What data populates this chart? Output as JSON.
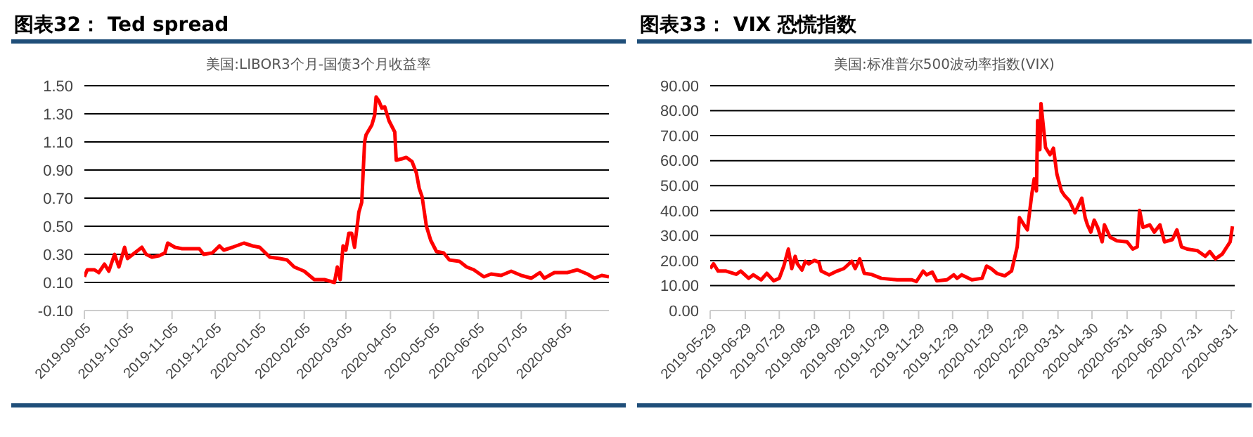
{
  "chart_data": [
    {
      "type": "line",
      "title": "图表32： Ted spread",
      "subtitle": "美国:LIBOR3个月-国债3个月收益率",
      "grid": "y",
      "marker": "none",
      "line_style": "solid",
      "x": [
        "2019-09-05",
        "2019-09-07",
        "2019-09-12",
        "2019-09-15",
        "2019-09-19",
        "2019-09-22",
        "2019-09-26",
        "2019-09-29",
        "2019-10-03",
        "2019-10-05",
        "2019-10-10",
        "2019-10-15",
        "2019-10-18",
        "2019-10-22",
        "2019-10-27",
        "2019-10-31",
        "2019-11-02",
        "2019-11-07",
        "2019-11-12",
        "2019-11-19",
        "2019-11-24",
        "2019-11-27",
        "2019-12-03",
        "2019-12-08",
        "2019-12-11",
        "2019-12-17",
        "2019-12-25",
        "2019-12-31",
        "2020-01-05",
        "2020-01-12",
        "2020-01-19",
        "2020-01-24",
        "2020-01-29",
        "2020-02-05",
        "2020-02-12",
        "2020-02-19",
        "2020-02-26",
        "2020-02-28",
        "2020-03-01",
        "2020-03-03",
        "2020-03-05",
        "2020-03-07",
        "2020-03-09",
        "2020-03-11",
        "2020-03-14",
        "2020-03-16",
        "2020-03-18",
        "2020-03-19",
        "2020-03-23",
        "2020-03-25",
        "2020-03-26",
        "2020-03-28",
        "2020-03-30",
        "2020-04-01",
        "2020-04-04",
        "2020-04-08",
        "2020-04-09",
        "2020-04-13",
        "2020-04-16",
        "2020-04-20",
        "2020-04-23",
        "2020-04-25",
        "2020-04-27",
        "2020-04-30",
        "2020-05-03",
        "2020-05-07",
        "2020-05-12",
        "2020-05-16",
        "2020-05-23",
        "2020-05-28",
        "2020-06-02",
        "2020-06-09",
        "2020-06-14",
        "2020-06-21",
        "2020-06-28",
        "2020-07-05",
        "2020-07-12",
        "2020-07-18",
        "2020-07-21",
        "2020-07-28",
        "2020-08-06",
        "2020-08-13",
        "2020-08-20",
        "2020-08-25",
        "2020-08-30",
        "2020-09-04"
      ],
      "series": [
        {
          "color": "#ff0000",
          "values": [
            0.14,
            0.19,
            0.19,
            0.17,
            0.23,
            0.18,
            0.3,
            0.21,
            0.35,
            0.27,
            0.31,
            0.35,
            0.3,
            0.28,
            0.29,
            0.31,
            0.38,
            0.35,
            0.34,
            0.34,
            0.34,
            0.3,
            0.31,
            0.36,
            0.33,
            0.35,
            0.38,
            0.36,
            0.35,
            0.28,
            0.27,
            0.26,
            0.21,
            0.18,
            0.12,
            0.12,
            0.1,
            0.21,
            0.12,
            0.36,
            0.33,
            0.45,
            0.45,
            0.35,
            0.6,
            0.67,
            1.1,
            1.15,
            1.22,
            1.29,
            1.42,
            1.39,
            1.34,
            1.35,
            1.25,
            1.17,
            0.97,
            0.98,
            0.99,
            0.96,
            0.88,
            0.77,
            0.71,
            0.5,
            0.4,
            0.32,
            0.31,
            0.26,
            0.25,
            0.21,
            0.19,
            0.14,
            0.16,
            0.15,
            0.18,
            0.15,
            0.13,
            0.17,
            0.13,
            0.17,
            0.17,
            0.19,
            0.16,
            0.13,
            0.15,
            0.14
          ]
        }
      ],
      "xlim": [
        "2019-09-05",
        "2020-09-04"
      ],
      "xticks": [
        "2019-09-05",
        "2019-10-05",
        "2019-11-05",
        "2019-12-05",
        "2020-01-05",
        "2020-02-05",
        "2020-03-05",
        "2020-04-05",
        "2020-05-05",
        "2020-06-05",
        "2020-07-05",
        "2020-08-05"
      ],
      "ylim": [
        -0.1,
        1.5
      ],
      "yticks": [
        {
          "value": -0.1,
          "label": "-0.10"
        },
        {
          "value": 0.1,
          "label": "0.10"
        },
        {
          "value": 0.3,
          "label": "0.30"
        },
        {
          "value": 0.5,
          "label": "0.50"
        },
        {
          "value": 0.7,
          "label": "0.70"
        },
        {
          "value": 0.9,
          "label": "0.90"
        },
        {
          "value": 1.1,
          "label": "1.10"
        },
        {
          "value": 1.3,
          "label": "1.30"
        },
        {
          "value": 1.5,
          "label": "1.50"
        }
      ]
    },
    {
      "type": "line",
      "title": "图表33： VIX 恐慌指数",
      "subtitle": "美国:标准普尔500波动率指数(VIX)",
      "grid": "y",
      "marker": "none",
      "line_style": "solid",
      "x": [
        "2019-05-29",
        "2019-06-01",
        "2019-06-05",
        "2019-06-12",
        "2019-06-21",
        "2019-06-25",
        "2019-07-02",
        "2019-07-06",
        "2019-07-13",
        "2019-07-18",
        "2019-07-24",
        "2019-07-29",
        "2019-08-02",
        "2019-08-06",
        "2019-08-09",
        "2019-08-12",
        "2019-08-14",
        "2019-08-18",
        "2019-08-21",
        "2019-08-24",
        "2019-08-29",
        "2019-09-02",
        "2019-09-04",
        "2019-09-11",
        "2019-09-18",
        "2019-09-24",
        "2019-10-01",
        "2019-10-04",
        "2019-10-08",
        "2019-10-12",
        "2019-10-18",
        "2019-10-27",
        "2019-11-10",
        "2019-11-23",
        "2019-11-27",
        "2019-12-03",
        "2019-12-06",
        "2019-12-11",
        "2019-12-15",
        "2019-12-24",
        "2019-12-30",
        "2020-01-02",
        "2020-01-06",
        "2020-01-15",
        "2020-01-24",
        "2020-01-28",
        "2020-02-01",
        "2020-02-06",
        "2020-02-13",
        "2020-02-19",
        "2020-02-24",
        "2020-02-26",
        "2020-03-01",
        "2020-03-04",
        "2020-03-08",
        "2020-03-10",
        "2020-03-12",
        "2020-03-13",
        "2020-03-15",
        "2020-03-16",
        "2020-03-18",
        "2020-03-20",
        "2020-03-24",
        "2020-03-27",
        "2020-03-30",
        "2020-04-03",
        "2020-04-06",
        "2020-04-10",
        "2020-04-15",
        "2020-04-18",
        "2020-04-21",
        "2020-04-24",
        "2020-04-26",
        "2020-04-29",
        "2020-05-02",
        "2020-05-05",
        "2020-05-09",
        "2020-05-11",
        "2020-05-16",
        "2020-05-22",
        "2020-05-31",
        "2020-06-05",
        "2020-06-09",
        "2020-06-11",
        "2020-06-14",
        "2020-06-20",
        "2020-06-24",
        "2020-06-29",
        "2020-07-03",
        "2020-07-10",
        "2020-07-14",
        "2020-07-18",
        "2020-07-23",
        "2020-08-01",
        "2020-08-08",
        "2020-08-12",
        "2020-08-17",
        "2020-08-23",
        "2020-08-30",
        "2020-09-01"
      ],
      "series": [
        {
          "color": "#ff0000",
          "values": [
            16.8,
            18.7,
            15.8,
            15.8,
            14.5,
            15.8,
            12.9,
            14.3,
            12.3,
            14.9,
            11.9,
            12.9,
            17.8,
            24.6,
            16.8,
            21.7,
            18.7,
            16.2,
            19.7,
            18.7,
            20.1,
            19.3,
            15.8,
            14.3,
            15.8,
            16.8,
            19.7,
            16.8,
            20.7,
            14.9,
            14.5,
            12.9,
            12.3,
            12.3,
            11.6,
            15.8,
            14.3,
            15.4,
            11.9,
            12.3,
            14.3,
            12.9,
            14.3,
            12.3,
            12.9,
            17.8,
            16.8,
            14.9,
            13.9,
            15.8,
            25.5,
            37.2,
            34.3,
            32.3,
            46.9,
            52.7,
            47.9,
            76.0,
            64.4,
            82.8,
            74.1,
            65.3,
            62.4,
            65.0,
            54.7,
            47.9,
            45.9,
            44.0,
            39.1,
            42.0,
            45.0,
            37.2,
            34.3,
            31.4,
            36.2,
            33.3,
            27.5,
            34.3,
            29.4,
            27.9,
            27.5,
            24.6,
            25.5,
            40.1,
            33.3,
            34.3,
            31.4,
            34.3,
            27.5,
            28.4,
            32.3,
            25.5,
            24.6,
            24.0,
            21.7,
            23.6,
            20.7,
            22.6,
            27.5,
            33.7
          ]
        }
      ],
      "xlim": [
        "2019-05-29",
        "2020-09-03"
      ],
      "xticks": [
        "2019-05-29",
        "2019-06-29",
        "2019-07-29",
        "2019-08-29",
        "2019-09-29",
        "2019-10-29",
        "2019-11-29",
        "2019-12-29",
        "2020-01-29",
        "2020-02-29",
        "2020-03-31",
        "2020-04-30",
        "2020-05-31",
        "2020-06-30",
        "2020-07-31",
        "2020-08-31"
      ],
      "ylim": [
        0,
        90
      ],
      "yticks": [
        {
          "value": 0,
          "label": "0.00"
        },
        {
          "value": 10,
          "label": "10.00"
        },
        {
          "value": 20,
          "label": "20.00"
        },
        {
          "value": 30,
          "label": "30.00"
        },
        {
          "value": 40,
          "label": "40.00"
        },
        {
          "value": 50,
          "label": "50.00"
        },
        {
          "value": 60,
          "label": "60.00"
        },
        {
          "value": 70,
          "label": "70.00"
        },
        {
          "value": 80,
          "label": "80.00"
        },
        {
          "value": 90,
          "label": "90.00"
        }
      ]
    }
  ]
}
